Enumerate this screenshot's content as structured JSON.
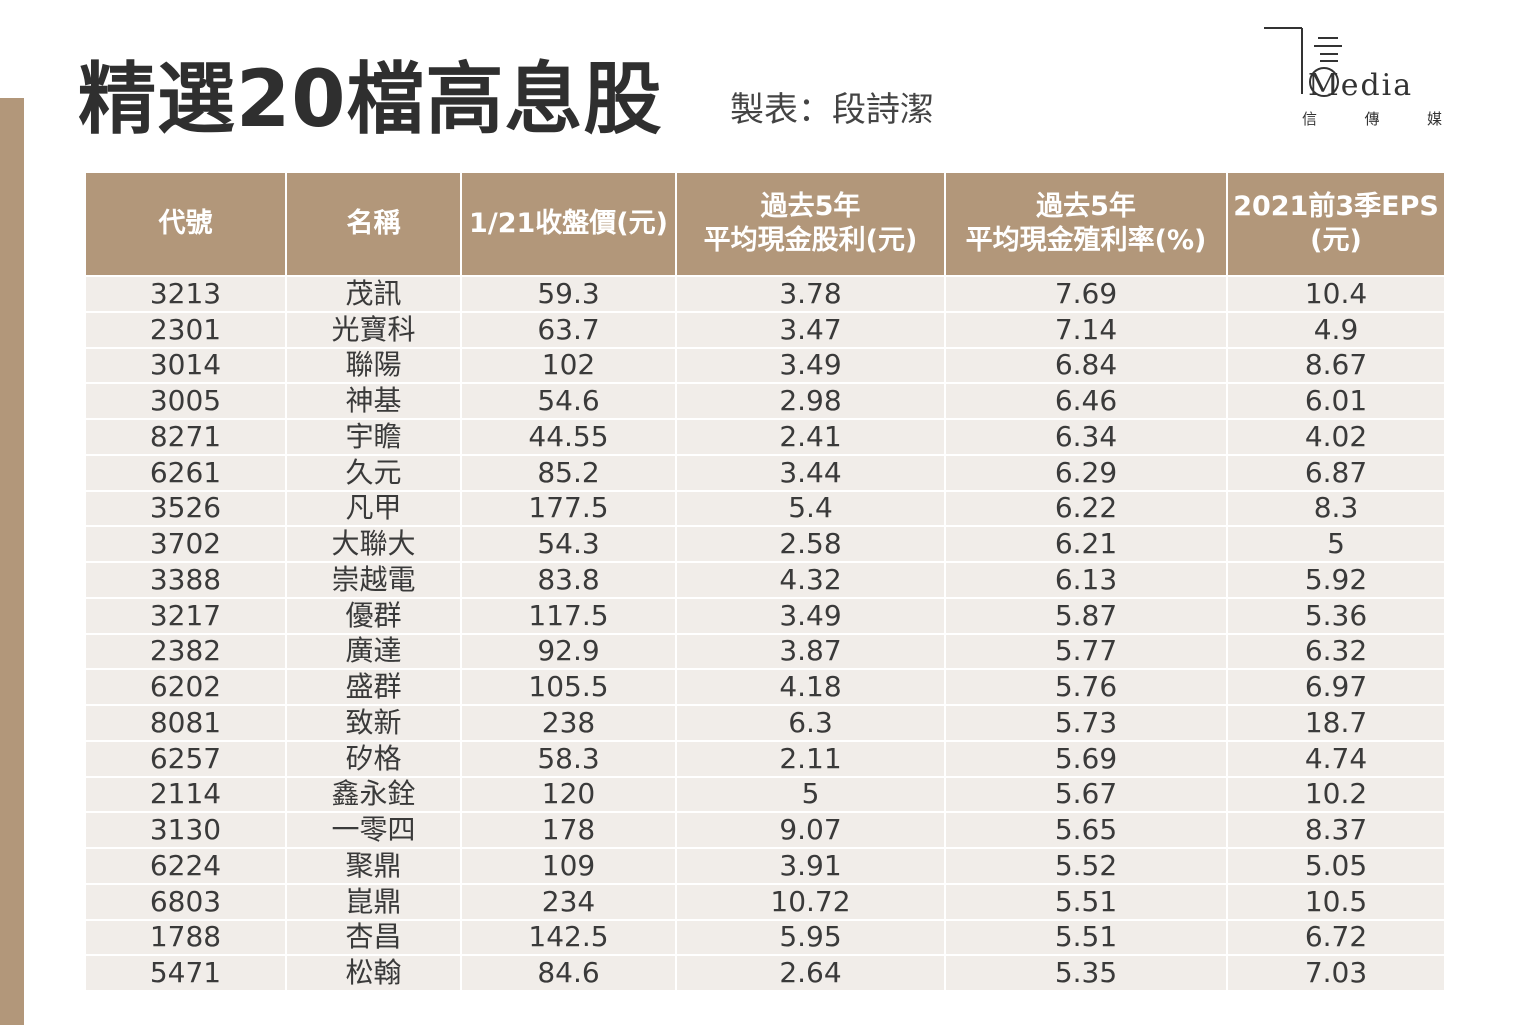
{
  "title": "精選20檔高息股",
  "credit": "製表：段詩潔",
  "logo": {
    "word": "Media",
    "sub": [
      "信",
      "傳",
      "媒"
    ]
  },
  "colors": {
    "accent": "#b2977a",
    "row_bg": "#f1ede9"
  },
  "table": {
    "headers": [
      [
        "代號"
      ],
      [
        "名稱"
      ],
      [
        "1/21收盤價(元)"
      ],
      [
        "過去5年",
        "平均現金股利(元)"
      ],
      [
        "過去5年",
        "平均現金殖利率(%)"
      ],
      [
        "2021前3季EPS",
        "(元)"
      ]
    ],
    "rows": [
      [
        "3213",
        "茂訊",
        "59.3",
        "3.78",
        "7.69",
        "10.4"
      ],
      [
        "2301",
        "光寶科",
        "63.7",
        "3.47",
        "7.14",
        "4.9"
      ],
      [
        "3014",
        "聯陽",
        "102",
        "3.49",
        "6.84",
        "8.67"
      ],
      [
        "3005",
        "神基",
        "54.6",
        "2.98",
        "6.46",
        "6.01"
      ],
      [
        "8271",
        "宇瞻",
        "44.55",
        "2.41",
        "6.34",
        "4.02"
      ],
      [
        "6261",
        "久元",
        "85.2",
        "3.44",
        "6.29",
        "6.87"
      ],
      [
        "3526",
        "凡甲",
        "177.5",
        "5.4",
        "6.22",
        "8.3"
      ],
      [
        "3702",
        "大聯大",
        "54.3",
        "2.58",
        "6.21",
        "5"
      ],
      [
        "3388",
        "崇越電",
        "83.8",
        "4.32",
        "6.13",
        "5.92"
      ],
      [
        "3217",
        "優群",
        "117.5",
        "3.49",
        "5.87",
        "5.36"
      ],
      [
        "2382",
        "廣達",
        "92.9",
        "3.87",
        "5.77",
        "6.32"
      ],
      [
        "6202",
        "盛群",
        "105.5",
        "4.18",
        "5.76",
        "6.97"
      ],
      [
        "8081",
        "致新",
        "238",
        "6.3",
        "5.73",
        "18.7"
      ],
      [
        "6257",
        "矽格",
        "58.3",
        "2.11",
        "5.69",
        "4.74"
      ],
      [
        "2114",
        "鑫永銓",
        "120",
        "5",
        "5.67",
        "10.2"
      ],
      [
        "3130",
        "一零四",
        "178",
        "9.07",
        "5.65",
        "8.37"
      ],
      [
        "6224",
        "聚鼎",
        "109",
        "3.91",
        "5.52",
        "5.05"
      ],
      [
        "6803",
        "崑鼎",
        "234",
        "10.72",
        "5.51",
        "10.5"
      ],
      [
        "1788",
        "杏昌",
        "142.5",
        "5.95",
        "5.51",
        "6.72"
      ],
      [
        "5471",
        "松翰",
        "84.6",
        "2.64",
        "5.35",
        "7.03"
      ]
    ]
  }
}
